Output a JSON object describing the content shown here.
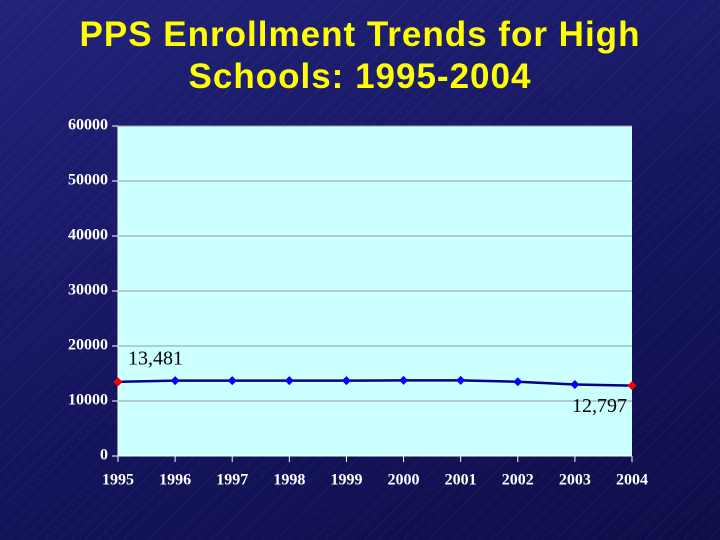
{
  "chart_data": {
    "type": "line",
    "title": "PPS Enrollment Trends for High Schools: 1995-2004",
    "categories": [
      "1995",
      "1996",
      "1997",
      "1998",
      "1999",
      "2000",
      "2001",
      "2002",
      "2003",
      "2004"
    ],
    "series": [
      {
        "color": "#000080",
        "marker_color": "#0000ff",
        "marker_colors": [
          "#ff0000",
          "#0000ff",
          "#0000ff",
          "#0000ff",
          "#0000ff",
          "#0000ff",
          "#0000ff",
          "#0000ff",
          "#0000ff",
          "#ff0000"
        ],
        "values": [
          13481,
          13700,
          13700,
          13700,
          13700,
          13750,
          13750,
          13500,
          13000,
          12797
        ],
        "value_labels": [
          "13,481",
          null,
          null,
          null,
          null,
          null,
          null,
          null,
          null,
          "12,797"
        ]
      }
    ],
    "ylim": [
      0,
      60000
    ],
    "yticks": [
      0,
      10000,
      20000,
      30000,
      40000,
      50000,
      60000
    ],
    "grid": true,
    "plot_background": "#ccffff"
  }
}
